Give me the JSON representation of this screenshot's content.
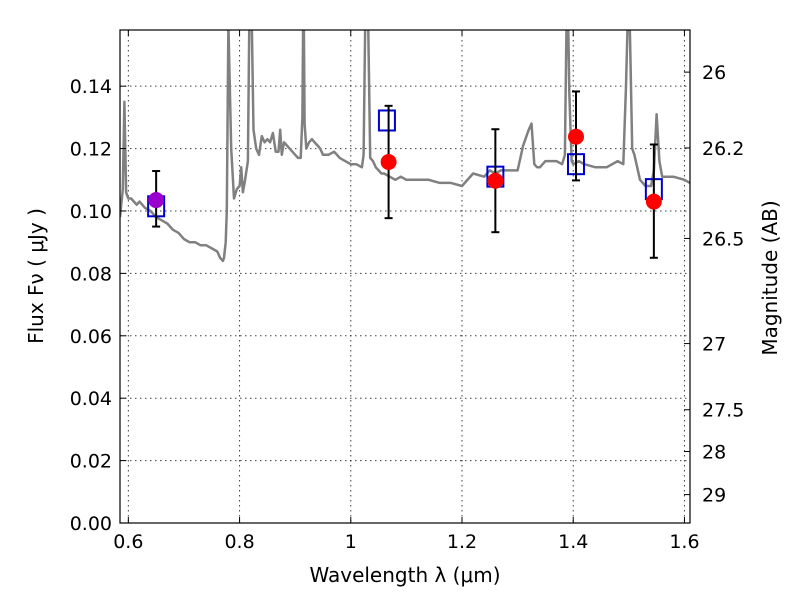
{
  "chart_data": {
    "type": "scatter",
    "xlabel": "Wavelength  λ (μm)",
    "ylabel": "Flux  Fν  ( μJy )",
    "y2label": "Magnitude (AB)",
    "xlim": [
      0.585,
      1.61
    ],
    "ylim": [
      0.0,
      0.158
    ],
    "grid": true,
    "x_ticks": [
      0.6,
      0.8,
      1.0,
      1.2,
      1.4,
      1.6
    ],
    "x_tick_labels": [
      "0.6",
      "0.8",
      "1",
      "1.2",
      "1.4",
      "1.6"
    ],
    "y_ticks": [
      0.0,
      0.02,
      0.04,
      0.06,
      0.08,
      0.1,
      0.12,
      0.14
    ],
    "y_tick_labels": [
      "0.00",
      "0.02",
      "0.04",
      "0.06",
      "0.08",
      "0.10",
      "0.12",
      "0.14"
    ],
    "right_axis_ticks": [
      {
        "label": "26",
        "flux": 0.1445
      },
      {
        "label": "26.2",
        "flux": 0.1202
      },
      {
        "label": "26.5",
        "flux": 0.0912
      },
      {
        "label": "27",
        "flux": 0.0575
      },
      {
        "label": "27.5",
        "flux": 0.0363
      },
      {
        "label": "28",
        "flux": 0.0229
      },
      {
        "label": "29",
        "flux": 0.0091
      }
    ],
    "model_color": "#808080",
    "observed_color": "#ff0000",
    "model_band_color": "#0000cc",
    "highlight_point_color": "#9900cc",
    "model_spectrum": {
      "x": [
        0.585,
        0.59,
        0.593,
        0.596,
        0.598,
        0.6,
        0.605,
        0.61,
        0.615,
        0.62,
        0.625,
        0.63,
        0.64,
        0.65,
        0.66,
        0.67,
        0.68,
        0.69,
        0.7,
        0.71,
        0.72,
        0.73,
        0.74,
        0.75,
        0.76,
        0.765,
        0.77,
        0.772,
        0.775,
        0.777,
        0.78,
        0.785,
        0.79,
        0.795,
        0.8,
        0.803,
        0.806,
        0.81,
        0.815,
        0.818,
        0.822,
        0.825,
        0.83,
        0.835,
        0.84,
        0.845,
        0.85,
        0.855,
        0.86,
        0.865,
        0.87,
        0.873,
        0.876,
        0.88,
        0.885,
        0.89,
        0.895,
        0.9,
        0.905,
        0.91,
        0.913,
        0.915,
        0.917,
        0.92,
        0.925,
        0.93,
        0.935,
        0.94,
        0.945,
        0.95,
        0.96,
        0.97,
        0.98,
        0.99,
        1.0,
        1.01,
        1.02,
        1.023,
        1.026,
        1.03,
        1.035,
        1.04,
        1.045,
        1.05,
        1.055,
        1.06,
        1.07,
        1.08,
        1.09,
        1.1,
        1.12,
        1.14,
        1.16,
        1.18,
        1.2,
        1.22,
        1.24,
        1.25,
        1.26,
        1.27,
        1.28,
        1.29,
        1.3,
        1.31,
        1.32,
        1.325,
        1.33,
        1.335,
        1.34,
        1.35,
        1.36,
        1.37,
        1.38,
        1.385,
        1.388,
        1.39,
        1.393,
        1.397,
        1.4,
        1.41,
        1.42,
        1.44,
        1.46,
        1.48,
        1.49,
        1.495,
        1.5,
        1.503,
        1.506,
        1.51,
        1.52,
        1.53,
        1.54,
        1.545,
        1.55,
        1.555,
        1.56,
        1.58,
        1.6,
        1.61
      ],
      "y": [
        0.098,
        0.107,
        0.135,
        0.106,
        0.105,
        0.104,
        0.104,
        0.103,
        0.102,
        0.103,
        0.102,
        0.101,
        0.1,
        0.098,
        0.097,
        0.096,
        0.094,
        0.093,
        0.091,
        0.09,
        0.09,
        0.089,
        0.089,
        0.088,
        0.087,
        0.085,
        0.084,
        0.085,
        0.09,
        0.1,
        0.16,
        0.12,
        0.104,
        0.107,
        0.108,
        0.114,
        0.106,
        0.11,
        0.116,
        0.17,
        0.16,
        0.126,
        0.12,
        0.118,
        0.124,
        0.122,
        0.123,
        0.122,
        0.125,
        0.119,
        0.119,
        0.126,
        0.118,
        0.122,
        0.121,
        0.12,
        0.119,
        0.118,
        0.117,
        0.117,
        0.13,
        0.175,
        0.128,
        0.12,
        0.122,
        0.123,
        0.122,
        0.121,
        0.12,
        0.118,
        0.118,
        0.119,
        0.117,
        0.116,
        0.115,
        0.115,
        0.114,
        0.118,
        0.16,
        0.175,
        0.117,
        0.116,
        0.114,
        0.113,
        0.112,
        0.112,
        0.111,
        0.11,
        0.111,
        0.11,
        0.11,
        0.11,
        0.109,
        0.109,
        0.108,
        0.112,
        0.111,
        0.113,
        0.112,
        0.113,
        0.113,
        0.113,
        0.113,
        0.121,
        0.126,
        0.128,
        0.115,
        0.114,
        0.114,
        0.116,
        0.116,
        0.116,
        0.115,
        0.118,
        0.16,
        0.17,
        0.138,
        0.116,
        0.115,
        0.116,
        0.115,
        0.114,
        0.114,
        0.116,
        0.115,
        0.14,
        0.175,
        0.148,
        0.12,
        0.118,
        0.11,
        0.108,
        0.108,
        0.113,
        0.131,
        0.116,
        0.111,
        0.111,
        0.11,
        0.109
      ]
    },
    "model_band_points": {
      "x": [
        0.65,
        1.065,
        1.26,
        1.405,
        1.545
      ],
      "y": [
        0.1015,
        0.129,
        0.111,
        0.115,
        0.107
      ]
    },
    "observed_points": {
      "x": [
        0.65,
        1.068,
        1.26,
        1.405,
        1.545
      ],
      "y": [
        0.1035,
        0.1157,
        0.1097,
        0.1238,
        0.103
      ],
      "y_err_low": [
        0.0085,
        0.018,
        0.0165,
        0.014,
        0.018
      ],
      "y_err_high": [
        0.0093,
        0.018,
        0.0165,
        0.0145,
        0.0183
      ]
    }
  }
}
